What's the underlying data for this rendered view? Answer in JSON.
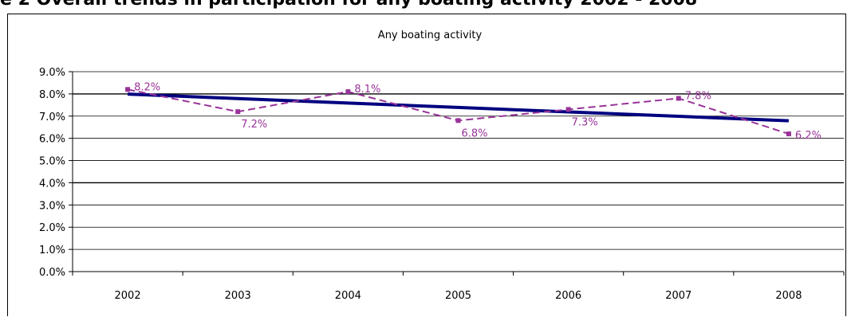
{
  "heading_cut": "e 2 Overall trends in participation for any boating activity 2002 - 2008",
  "chart_data": {
    "type": "line",
    "title": "Any boating activity",
    "categories": [
      "2002",
      "2003",
      "2004",
      "2005",
      "2006",
      "2007",
      "2008"
    ],
    "series": [
      {
        "values": [
          8.2,
          7.2,
          8.1,
          6.8,
          7.3,
          7.8,
          6.2
        ],
        "style": "dashed-markers",
        "color": "#993399"
      },
      {
        "values": [
          7.99,
          7.79,
          7.59,
          7.39,
          7.19,
          6.99,
          6.79
        ],
        "style": "solid-trendline",
        "color": "#000080"
      }
    ],
    "data_labels": [
      "8.2%",
      "7.2%",
      "8.1%",
      "6.8%",
      "7.3%",
      "7.8%",
      "6.2%"
    ],
    "y_ticks": [
      "0.0%",
      "1.0%",
      "2.0%",
      "3.0%",
      "4.0%",
      "5.0%",
      "6.0%",
      "7.0%",
      "8.0%",
      "9.0%"
    ],
    "ylim": [
      0,
      9
    ],
    "xlabel": "",
    "ylabel": "",
    "grid": true,
    "legend": "none",
    "colors": {
      "series_line": "#993399",
      "trend_line": "#000080",
      "grid": "#000000"
    }
  }
}
